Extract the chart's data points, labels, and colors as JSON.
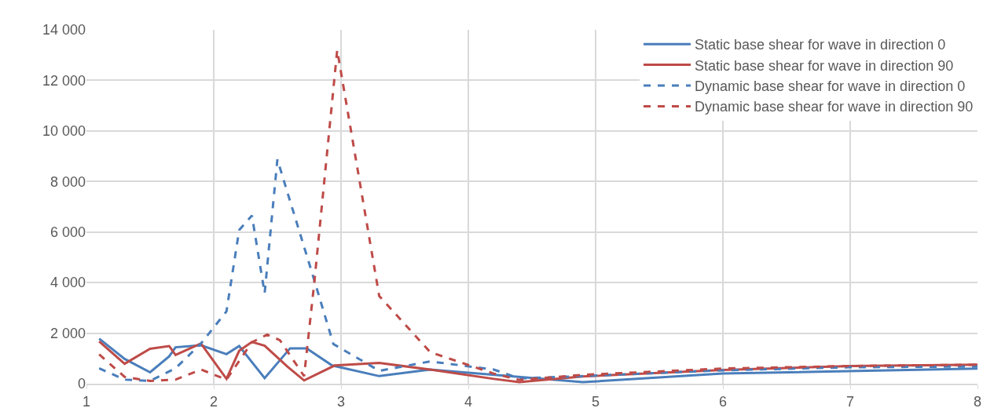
{
  "chart_data": {
    "type": "line",
    "xlim": [
      1,
      8
    ],
    "ylim": [
      0,
      14000
    ],
    "xticks": [
      1,
      2,
      3,
      4,
      5,
      6,
      7,
      8
    ],
    "yticks": [
      {
        "value": 0,
        "label": "0"
      },
      {
        "value": 2000,
        "label": "2 000"
      },
      {
        "value": 4000,
        "label": "4 000"
      },
      {
        "value": 6000,
        "label": "6 000"
      },
      {
        "value": 8000,
        "label": "8 000"
      },
      {
        "value": 10000,
        "label": "10 000"
      },
      {
        "value": 12000,
        "label": "12 000"
      },
      {
        "value": 14000,
        "label": "14 000"
      }
    ],
    "grid": true,
    "legend": "top right",
    "marker": "none",
    "series": [
      {
        "name": "Static base shear for wave in direction 0",
        "color": "#4a7ebb",
        "line_style": "solid",
        "x": [
          1.1,
          1.3,
          1.5,
          1.65,
          1.7,
          1.9,
          2.1,
          2.2,
          2.4,
          2.6,
          2.73,
          2.93,
          3.3,
          3.7,
          4.9,
          6,
          8
        ],
        "values": [
          1780,
          980,
          450,
          1080,
          1440,
          1520,
          1170,
          1490,
          220,
          1400,
          1400,
          720,
          300,
          560,
          60,
          400,
          600
        ]
      },
      {
        "name": "Static base shear for wave in direction 90",
        "color": "#be4b48",
        "line_style": "solid",
        "x": [
          1.1,
          1.3,
          1.5,
          1.65,
          1.7,
          1.9,
          2.1,
          2.2,
          2.3,
          2.4,
          2.58,
          2.71,
          2.95,
          3.3,
          3.7,
          4.2,
          4.4,
          4.9,
          6,
          7,
          8
        ],
        "values": [
          1670,
          790,
          1380,
          1490,
          1140,
          1590,
          190,
          1300,
          1650,
          1500,
          670,
          130,
          720,
          820,
          560,
          190,
          60,
          290,
          540,
          700,
          750
        ]
      },
      {
        "name": "Dynamic base shear for wave in direction 0",
        "color": "#4a7ebb",
        "line_style": "dashed",
        "x": [
          1.1,
          1.3,
          1.5,
          1.7,
          1.9,
          2.1,
          2.2,
          2.3,
          2.4,
          2.5,
          2.78,
          2.94,
          3.3,
          3.7,
          4.2,
          4.4,
          4.9,
          6,
          7,
          8
        ],
        "values": [
          610,
          160,
          110,
          610,
          1590,
          2860,
          6080,
          6650,
          3580,
          8870,
          4260,
          1570,
          510,
          880,
          560,
          210,
          300,
          530,
          650,
          680
        ]
      },
      {
        "name": "Dynamic base shear for wave in direction 90",
        "color": "#be4b48",
        "line_style": "dashed",
        "x": [
          1.1,
          1.3,
          1.5,
          1.7,
          1.9,
          2.1,
          2.3,
          2.42,
          2.52,
          2.71,
          2.79,
          2.97,
          3.3,
          3.7,
          4.2,
          4.4,
          4.9,
          6,
          7,
          8
        ],
        "values": [
          1160,
          270,
          110,
          160,
          560,
          160,
          1640,
          1940,
          1720,
          300,
          4000,
          13200,
          3470,
          1250,
          400,
          150,
          350,
          600,
          700,
          750
        ]
      }
    ]
  }
}
